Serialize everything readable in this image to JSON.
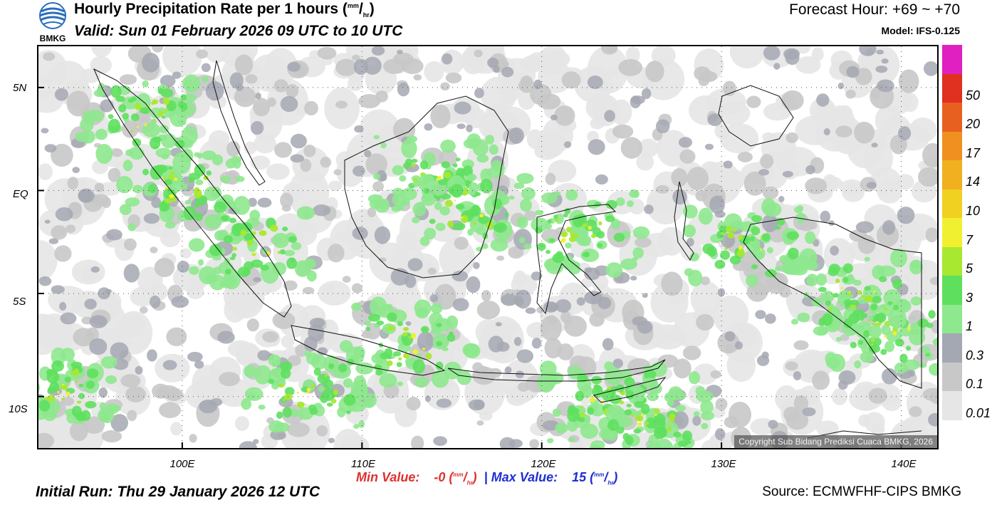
{
  "header": {
    "logo_text": "BMKG",
    "title": "Hourly Precipitation Rate per 1 hours",
    "title_unit_top": "mm",
    "title_unit_bottom": "hr",
    "valid": "Valid: Sun 01 February 2026 09 UTC to 10 UTC",
    "forecast_hour": "Forecast Hour: +69 ~ +70",
    "model": "Model: IFS-0.125"
  },
  "map": {
    "lat_labels": [
      "5N",
      "EQ",
      "5S",
      "10S"
    ],
    "lon_labels": [
      "100E",
      "110E",
      "120E",
      "130E",
      "140E"
    ],
    "extent": {
      "lon_min": 92,
      "lon_max": 142,
      "lat_min": -12.5,
      "lat_max": 7
    },
    "grid": true,
    "copyright": "Copyright Sub Bidang Prediksi Cuaca BMKG, 2026"
  },
  "colorbar": {
    "labels": [
      "0.01",
      "0.1",
      "0.3",
      "1",
      "3",
      "5",
      "7",
      "10",
      "14",
      "17",
      "20",
      "50"
    ],
    "colors": [
      "#e6e6e6",
      "#c8c8c8",
      "#a4a8b2",
      "#8ee88e",
      "#5ee05e",
      "#a8e830",
      "#f0f030",
      "#f0d020",
      "#f0b020",
      "#f09020",
      "#e86020",
      "#e03020",
      "#e020c0"
    ]
  },
  "footer": {
    "min_label": "Min Value:",
    "min_value": "-0",
    "sep": "|",
    "max_label": "Max Value:",
    "max_value": "15",
    "unit_top": "mm",
    "unit_bottom": "hr",
    "initial_run": "Initial Run: Thu 29 January 2026 12 UTC",
    "source": "Source: ECMWFHF-CIPS BMKG"
  }
}
